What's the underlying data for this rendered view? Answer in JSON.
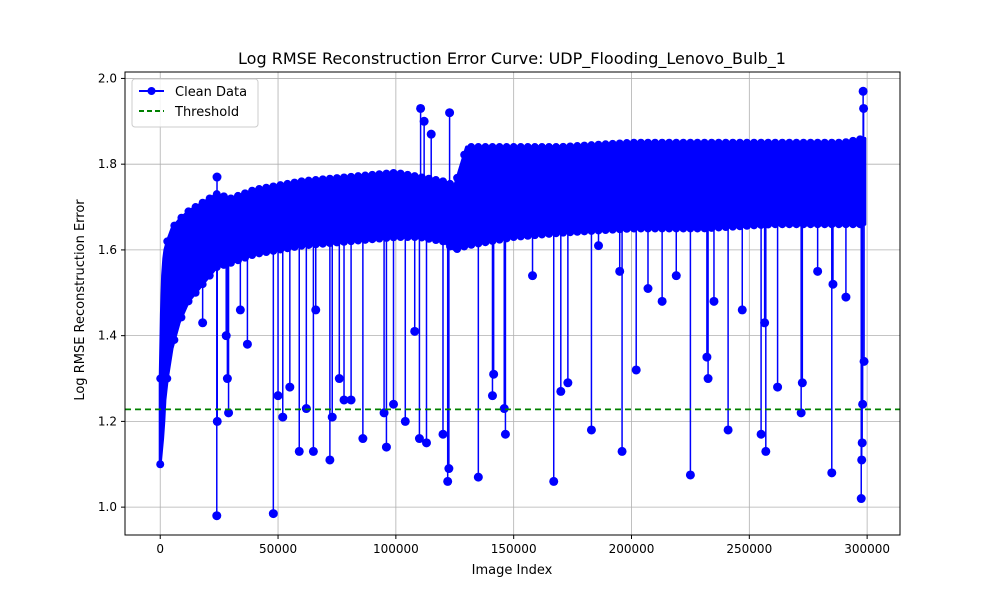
{
  "chart_data": {
    "type": "line",
    "title": "Log RMSE Reconstruction Error Curve: UDP_Flooding_Lenovo_Bulb_1",
    "xlabel": "Image Index",
    "ylabel": "Log RMSE Reconstruction Error",
    "xlim": [
      -14950,
      313950
    ],
    "ylim": [
      0.935,
      2.015
    ],
    "xticks": [
      0,
      50000,
      100000,
      150000,
      200000,
      250000,
      300000
    ],
    "xtick_labels": [
      "0",
      "50000",
      "100000",
      "150000",
      "200000",
      "250000",
      "300000"
    ],
    "yticks": [
      1.0,
      1.2,
      1.4,
      1.6,
      1.8,
      2.0
    ],
    "ytick_labels": [
      "1.0",
      "1.2",
      "1.4",
      "1.6",
      "1.8",
      "2.0"
    ],
    "grid": true,
    "legend_position": "upper-left",
    "series": [
      {
        "name": "Clean Data",
        "color": "#0000ff",
        "marker": "circle",
        "band": {
          "x": [
            0,
            500,
            1000,
            1500,
            2000,
            3000,
            5000,
            8000,
            12000,
            18000,
            24000,
            30000,
            40000,
            50000,
            60000,
            80000,
            100000,
            110000,
            120000,
            125000,
            130000,
            150000,
            170000,
            200000,
            230000,
            260000,
            290000,
            299000
          ],
          "low": [
            1.1,
            1.13,
            1.16,
            1.2,
            1.25,
            1.3,
            1.37,
            1.43,
            1.48,
            1.52,
            1.56,
            1.57,
            1.59,
            1.6,
            1.61,
            1.62,
            1.63,
            1.63,
            1.62,
            1.6,
            1.61,
            1.63,
            1.64,
            1.65,
            1.65,
            1.66,
            1.66,
            1.66
          ],
          "high": [
            1.3,
            1.45,
            1.54,
            1.58,
            1.6,
            1.62,
            1.65,
            1.67,
            1.69,
            1.71,
            1.73,
            1.72,
            1.74,
            1.75,
            1.76,
            1.77,
            1.78,
            1.77,
            1.76,
            1.75,
            1.84,
            1.84,
            1.84,
            1.85,
            1.85,
            1.85,
            1.85,
            1.86
          ]
        },
        "spikes": [
          {
            "x": 24000,
            "y": 0.98
          },
          {
            "x": 24200,
            "y": 1.2
          },
          {
            "x": 24100,
            "y": 1.77
          },
          {
            "x": 29000,
            "y": 1.22
          },
          {
            "x": 28500,
            "y": 1.3
          },
          {
            "x": 28000,
            "y": 1.4
          },
          {
            "x": 18000,
            "y": 1.43
          },
          {
            "x": 34000,
            "y": 1.46
          },
          {
            "x": 37000,
            "y": 1.38
          },
          {
            "x": 48000,
            "y": 0.985
          },
          {
            "x": 50000,
            "y": 1.26
          },
          {
            "x": 52000,
            "y": 1.21
          },
          {
            "x": 55000,
            "y": 1.28
          },
          {
            "x": 59000,
            "y": 1.13
          },
          {
            "x": 62000,
            "y": 1.23
          },
          {
            "x": 65000,
            "y": 1.13
          },
          {
            "x": 66000,
            "y": 1.46
          },
          {
            "x": 72000,
            "y": 1.11
          },
          {
            "x": 73000,
            "y": 1.21
          },
          {
            "x": 76000,
            "y": 1.3
          },
          {
            "x": 78000,
            "y": 1.25
          },
          {
            "x": 81000,
            "y": 1.25
          },
          {
            "x": 86000,
            "y": 1.16
          },
          {
            "x": 96000,
            "y": 1.14
          },
          {
            "x": 95000,
            "y": 1.22
          },
          {
            "x": 99000,
            "y": 1.24
          },
          {
            "x": 104000,
            "y": 1.2
          },
          {
            "x": 108000,
            "y": 1.41
          },
          {
            "x": 110000,
            "y": 1.16
          },
          {
            "x": 110500,
            "y": 1.93
          },
          {
            "x": 113000,
            "y": 1.15
          },
          {
            "x": 112000,
            "y": 1.9
          },
          {
            "x": 115000,
            "y": 1.87
          },
          {
            "x": 120000,
            "y": 1.17
          },
          {
            "x": 122000,
            "y": 1.06
          },
          {
            "x": 122500,
            "y": 1.09
          },
          {
            "x": 122800,
            "y": 1.92
          },
          {
            "x": 135000,
            "y": 1.07
          },
          {
            "x": 141000,
            "y": 1.26
          },
          {
            "x": 141500,
            "y": 1.31
          },
          {
            "x": 146000,
            "y": 1.23
          },
          {
            "x": 146500,
            "y": 1.17
          },
          {
            "x": 158000,
            "y": 1.54
          },
          {
            "x": 167000,
            "y": 1.06
          },
          {
            "x": 170000,
            "y": 1.27
          },
          {
            "x": 173000,
            "y": 1.29
          },
          {
            "x": 183000,
            "y": 1.18
          },
          {
            "x": 186000,
            "y": 1.61
          },
          {
            "x": 195000,
            "y": 1.55
          },
          {
            "x": 196000,
            "y": 1.13
          },
          {
            "x": 202000,
            "y": 1.32
          },
          {
            "x": 207000,
            "y": 1.51
          },
          {
            "x": 213000,
            "y": 1.48
          },
          {
            "x": 219000,
            "y": 1.54
          },
          {
            "x": 225000,
            "y": 1.075
          },
          {
            "x": 232000,
            "y": 1.35
          },
          {
            "x": 232500,
            "y": 1.3
          },
          {
            "x": 235000,
            "y": 1.48
          },
          {
            "x": 241000,
            "y": 1.18
          },
          {
            "x": 247000,
            "y": 1.46
          },
          {
            "x": 255000,
            "y": 1.17
          },
          {
            "x": 257000,
            "y": 1.13
          },
          {
            "x": 256500,
            "y": 1.43
          },
          {
            "x": 262000,
            "y": 1.28
          },
          {
            "x": 272000,
            "y": 1.22
          },
          {
            "x": 272500,
            "y": 1.29
          },
          {
            "x": 279000,
            "y": 1.55
          },
          {
            "x": 285000,
            "y": 1.08
          },
          {
            "x": 285500,
            "y": 1.52
          },
          {
            "x": 291000,
            "y": 1.49
          },
          {
            "x": 297500,
            "y": 1.02
          },
          {
            "x": 297700,
            "y": 1.11
          },
          {
            "x": 297900,
            "y": 1.15
          },
          {
            "x": 298100,
            "y": 1.24
          },
          {
            "x": 298300,
            "y": 1.97
          },
          {
            "x": 298500,
            "y": 1.93
          },
          {
            "x": 298700,
            "y": 1.34
          }
        ]
      },
      {
        "name": "Threshold",
        "color": "#008000",
        "style": "dashed",
        "y": 1.228
      }
    ]
  }
}
